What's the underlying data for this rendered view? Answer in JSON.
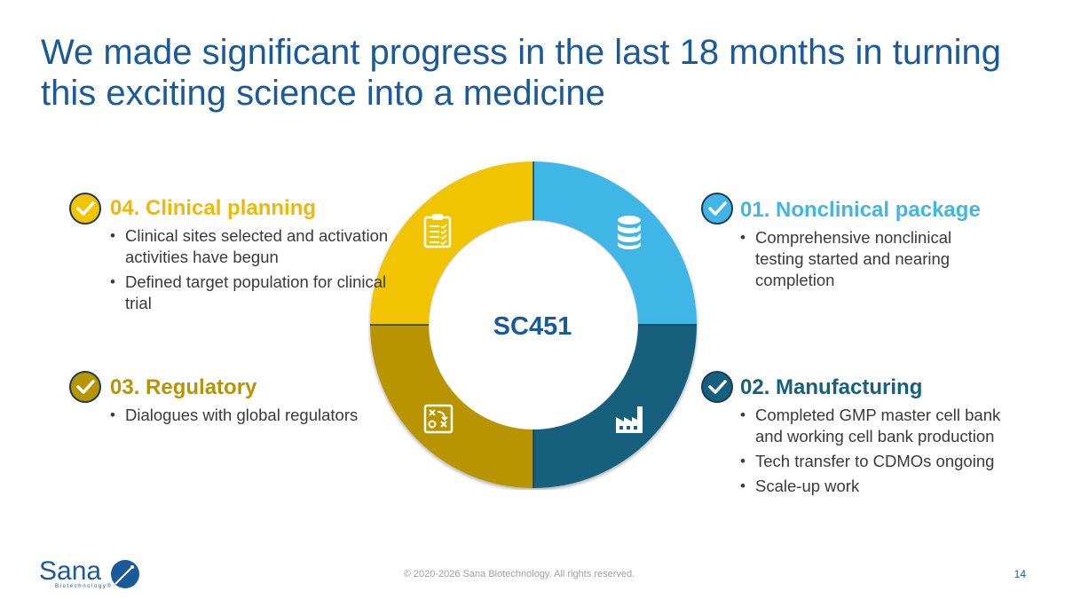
{
  "title": "We made significant progress in the last 18 months in turning this exciting science into a medicine",
  "center_label": "SC451",
  "colors": {
    "title": "#1a5a9a",
    "nonclinical": "#41b6e6",
    "manufacturing": "#14607e",
    "regulatory": "#b89400",
    "clinical": "#f0c400",
    "check_border": "#1c3b57"
  },
  "sections": {
    "nonclinical": {
      "heading": "01. Nonclinical package",
      "icon": "database-icon",
      "bullets": [
        "Comprehensive nonclinical testing started and nearing completion"
      ]
    },
    "manufacturing": {
      "heading": "02. Manufacturing",
      "icon": "factory-icon",
      "bullets": [
        "Completed GMP master cell bank and working cell bank production",
        "Tech transfer to CDMOs ongoing",
        "Scale-up work"
      ]
    },
    "regulatory": {
      "heading": "03. Regulatory",
      "icon": "strategy-board-icon",
      "bullets": [
        "Dialogues with global regulators"
      ]
    },
    "clinical": {
      "heading": "04. Clinical planning",
      "icon": "clipboard-checklist-icon",
      "bullets": [
        "Clinical sites selected and activation activities have begun",
        "Defined target population for clinical trial"
      ]
    }
  },
  "logo": {
    "name": "Sana",
    "sub": "Biotechnology®"
  },
  "footer": "© 2020-2026 Sana Biotechnology. All rights reserved.",
  "page_number": "14"
}
